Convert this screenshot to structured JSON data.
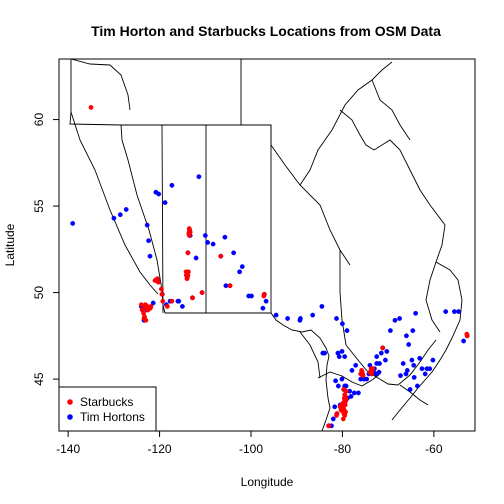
{
  "chart_data": {
    "type": "scatter",
    "title": "Tim Horton and Starbucks Locations from OSM Data",
    "xlabel": "Longitude",
    "ylabel": "Latitude",
    "xlim": [
      -142,
      -51
    ],
    "ylim": [
      42,
      63.5
    ],
    "xticks": [
      -140,
      -120,
      -100,
      -80,
      -60
    ],
    "yticks": [
      45,
      50,
      55,
      60
    ],
    "legend_position": "bottom-left",
    "series": [
      {
        "name": "Starbucks",
        "color": "#ff0000",
        "points": [
          [
            -135.0,
            60.7
          ],
          [
            -124.0,
            49.3
          ],
          [
            -123.8,
            49.0
          ],
          [
            -123.5,
            48.8
          ],
          [
            -123.4,
            48.5
          ],
          [
            -123.2,
            49.2
          ],
          [
            -123.1,
            49.3
          ],
          [
            -123.0,
            49.1
          ],
          [
            -122.9,
            49.2
          ],
          [
            -122.8,
            49.1
          ],
          [
            -122.7,
            49.2
          ],
          [
            -122.5,
            49.0
          ],
          [
            -122.3,
            49.1
          ],
          [
            -122.0,
            49.1
          ],
          [
            -121.9,
            49.2
          ],
          [
            -123.3,
            48.6
          ],
          [
            -123.0,
            48.4
          ],
          [
            -122.6,
            49.0
          ],
          [
            -121.0,
            50.7
          ],
          [
            -120.3,
            50.6
          ],
          [
            -119.5,
            49.9
          ],
          [
            -119.6,
            50.2
          ],
          [
            -119.3,
            49.5
          ],
          [
            -120.5,
            50.8
          ],
          [
            -118.3,
            49.2
          ],
          [
            -117.3,
            49.5
          ],
          [
            -114.1,
            51.0
          ],
          [
            -114.0,
            51.1
          ],
          [
            -113.9,
            50.9
          ],
          [
            -114.2,
            51.2
          ],
          [
            -113.8,
            51.0
          ],
          [
            -114.0,
            50.8
          ],
          [
            -113.7,
            51.2
          ],
          [
            -113.8,
            52.3
          ],
          [
            -113.5,
            53.5
          ],
          [
            -113.4,
            53.6
          ],
          [
            -113.6,
            53.4
          ],
          [
            -113.5,
            53.7
          ],
          [
            -113.3,
            53.5
          ],
          [
            -113.5,
            53.3
          ],
          [
            -112.8,
            49.7
          ],
          [
            -110.7,
            50.0
          ],
          [
            -106.6,
            52.1
          ],
          [
            -104.6,
            50.4
          ],
          [
            -97.1,
            49.9
          ],
          [
            -97.2,
            49.8
          ],
          [
            -79.4,
            43.7
          ],
          [
            -79.5,
            43.8
          ],
          [
            -79.6,
            43.6
          ],
          [
            -79.3,
            43.9
          ],
          [
            -79.7,
            43.5
          ],
          [
            -79.8,
            43.3
          ],
          [
            -79.9,
            43.2
          ],
          [
            -79.4,
            43.5
          ],
          [
            -79.2,
            43.8
          ],
          [
            -79.6,
            43.9
          ],
          [
            -79.5,
            44.1
          ],
          [
            -79.7,
            43.0
          ],
          [
            -79.5,
            42.9
          ],
          [
            -79.8,
            42.7
          ],
          [
            -79.3,
            43.1
          ],
          [
            -79.6,
            43.2
          ],
          [
            -79.9,
            43.6
          ],
          [
            -80.0,
            43.4
          ],
          [
            -80.2,
            43.5
          ],
          [
            -80.5,
            43.4
          ],
          [
            -79.4,
            44.0
          ],
          [
            -79.2,
            44.3
          ],
          [
            -79.7,
            44.4
          ],
          [
            -80.3,
            43.2
          ],
          [
            -81.2,
            43.0
          ],
          [
            -81.3,
            42.9
          ],
          [
            -83.0,
            42.3
          ],
          [
            -75.7,
            45.4
          ],
          [
            -75.6,
            45.3
          ],
          [
            -75.8,
            45.5
          ],
          [
            -75.5,
            45.2
          ],
          [
            -76.0,
            45.3
          ],
          [
            -73.6,
            45.5
          ],
          [
            -73.7,
            45.6
          ],
          [
            -73.5,
            45.5
          ],
          [
            -73.8,
            45.4
          ],
          [
            -73.4,
            45.6
          ],
          [
            -73.6,
            45.3
          ],
          [
            -74.0,
            45.4
          ],
          [
            -71.2,
            46.8
          ],
          [
            -52.7,
            47.5
          ],
          [
            -52.8,
            47.6
          ]
        ]
      },
      {
        "name": "Tim Hortons",
        "color": "#0000ff",
        "points": [
          [
            -139.0,
            54.0
          ],
          [
            -130.0,
            54.3
          ],
          [
            -128.6,
            54.5
          ],
          [
            -127.3,
            54.8
          ],
          [
            -122.7,
            53.9
          ],
          [
            -122.4,
            53.0
          ],
          [
            -122.1,
            52.1
          ],
          [
            -120.8,
            55.8
          ],
          [
            -120.2,
            55.7
          ],
          [
            -118.8,
            55.2
          ],
          [
            -117.3,
            56.2
          ],
          [
            -111.4,
            56.7
          ],
          [
            -124.0,
            49.2
          ],
          [
            -123.4,
            48.4
          ],
          [
            -122.8,
            49.0
          ],
          [
            -122.3,
            49.1
          ],
          [
            -121.4,
            49.4
          ],
          [
            -120.3,
            50.7
          ],
          [
            -119.4,
            49.9
          ],
          [
            -118.5,
            49.3
          ],
          [
            -117.7,
            49.5
          ],
          [
            -116.0,
            49.5
          ],
          [
            -115.8,
            49.5
          ],
          [
            -115.0,
            49.2
          ],
          [
            -114.1,
            51.0
          ],
          [
            -113.8,
            52.3
          ],
          [
            -113.5,
            53.5
          ],
          [
            -113.3,
            53.3
          ],
          [
            -112.8,
            49.7
          ],
          [
            -112.0,
            52.0
          ],
          [
            -110.7,
            50.0
          ],
          [
            -110.0,
            53.3
          ],
          [
            -109.5,
            52.9
          ],
          [
            -108.3,
            52.8
          ],
          [
            -106.6,
            52.1
          ],
          [
            -105.7,
            53.2
          ],
          [
            -105.5,
            50.4
          ],
          [
            -104.6,
            50.4
          ],
          [
            -103.8,
            52.3
          ],
          [
            -102.5,
            51.2
          ],
          [
            -101.9,
            51.5
          ],
          [
            -100.5,
            49.8
          ],
          [
            -99.9,
            49.8
          ],
          [
            -97.1,
            49.9
          ],
          [
            -97.4,
            49.1
          ],
          [
            -96.7,
            49.5
          ],
          [
            -94.5,
            48.7
          ],
          [
            -92.0,
            48.5
          ],
          [
            -89.3,
            48.4
          ],
          [
            -89.2,
            48.5
          ],
          [
            -86.5,
            48.7
          ],
          [
            -84.5,
            49.2
          ],
          [
            -84.3,
            46.5
          ],
          [
            -83.9,
            46.5
          ],
          [
            -81.3,
            48.5
          ],
          [
            -81.0,
            46.5
          ],
          [
            -80.7,
            46.3
          ],
          [
            -80.1,
            46.6
          ],
          [
            -79.5,
            46.3
          ],
          [
            -79.0,
            47.8
          ],
          [
            -80.0,
            48.2
          ],
          [
            -81.5,
            44.9
          ],
          [
            -82.4,
            42.3
          ],
          [
            -83.0,
            42.3
          ],
          [
            -82.0,
            42.7
          ],
          [
            -81.2,
            43.0
          ],
          [
            -81.7,
            43.4
          ],
          [
            -80.5,
            43.5
          ],
          [
            -80.2,
            43.2
          ],
          [
            -79.9,
            43.2
          ],
          [
            -79.4,
            43.7
          ],
          [
            -79.7,
            43.6
          ],
          [
            -79.3,
            43.8
          ],
          [
            -78.9,
            43.9
          ],
          [
            -78.4,
            44.3
          ],
          [
            -78.1,
            44.0
          ],
          [
            -77.4,
            44.2
          ],
          [
            -76.5,
            44.2
          ],
          [
            -79.7,
            44.4
          ],
          [
            -79.5,
            44.6
          ],
          [
            -80.9,
            44.6
          ],
          [
            -80.1,
            45.0
          ],
          [
            -79.2,
            44.6
          ],
          [
            -77.9,
            45.5
          ],
          [
            -77.1,
            45.8
          ],
          [
            -76.0,
            45.0
          ],
          [
            -75.7,
            45.4
          ],
          [
            -75.3,
            45.0
          ],
          [
            -74.7,
            45.0
          ],
          [
            -74.2,
            45.3
          ],
          [
            -74.0,
            45.8
          ],
          [
            -73.6,
            45.5
          ],
          [
            -73.2,
            45.4
          ],
          [
            -73.0,
            45.6
          ],
          [
            -72.7,
            45.3
          ],
          [
            -72.5,
            45.9
          ],
          [
            -72.0,
            45.4
          ],
          [
            -71.9,
            45.9
          ],
          [
            -71.2,
            46.8
          ],
          [
            -71.5,
            46.5
          ],
          [
            -72.5,
            46.3
          ],
          [
            -70.6,
            46.1
          ],
          [
            -70.3,
            46.6
          ],
          [
            -69.5,
            47.8
          ],
          [
            -68.5,
            48.4
          ],
          [
            -67.5,
            48.5
          ],
          [
            -66.0,
            47.5
          ],
          [
            -64.6,
            47.8
          ],
          [
            -64.0,
            48.8
          ],
          [
            -66.7,
            45.9
          ],
          [
            -66.1,
            45.3
          ],
          [
            -67.3,
            45.2
          ],
          [
            -65.8,
            45.5
          ],
          [
            -64.8,
            46.1
          ],
          [
            -65.5,
            47.0
          ],
          [
            -64.4,
            45.8
          ],
          [
            -63.6,
            44.6
          ],
          [
            -63.1,
            46.2
          ],
          [
            -62.6,
            45.6
          ],
          [
            -64.3,
            45.1
          ],
          [
            -65.2,
            44.4
          ],
          [
            -61.9,
            45.3
          ],
          [
            -60.2,
            46.1
          ],
          [
            -60.9,
            45.6
          ],
          [
            -61.5,
            45.6
          ],
          [
            -55.5,
            48.9
          ],
          [
            -54.6,
            48.9
          ],
          [
            -53.5,
            47.2
          ],
          [
            -52.7,
            47.5
          ],
          [
            -57.4,
            48.9
          ]
        ]
      }
    ]
  }
}
